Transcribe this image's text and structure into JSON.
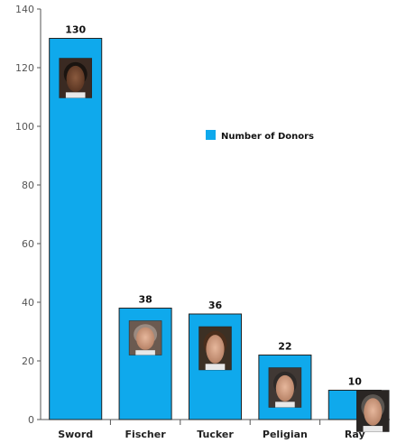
{
  "chart_data": {
    "type": "bar",
    "categories": [
      "Sword",
      "Fischer",
      "Tucker",
      "Peligian",
      "Ray"
    ],
    "series": [
      {
        "name": "Number of Donors",
        "values": [
          130,
          38,
          36,
          22,
          10
        ]
      }
    ],
    "ylim": [
      0,
      140
    ],
    "yticks": [
      0,
      20,
      40,
      60,
      80,
      100,
      120,
      140
    ],
    "legend_position": "center-right",
    "grid": false,
    "bar_color": "#0fa9ec",
    "bar_edge_color": "#222222",
    "photos_on_bars": true
  }
}
